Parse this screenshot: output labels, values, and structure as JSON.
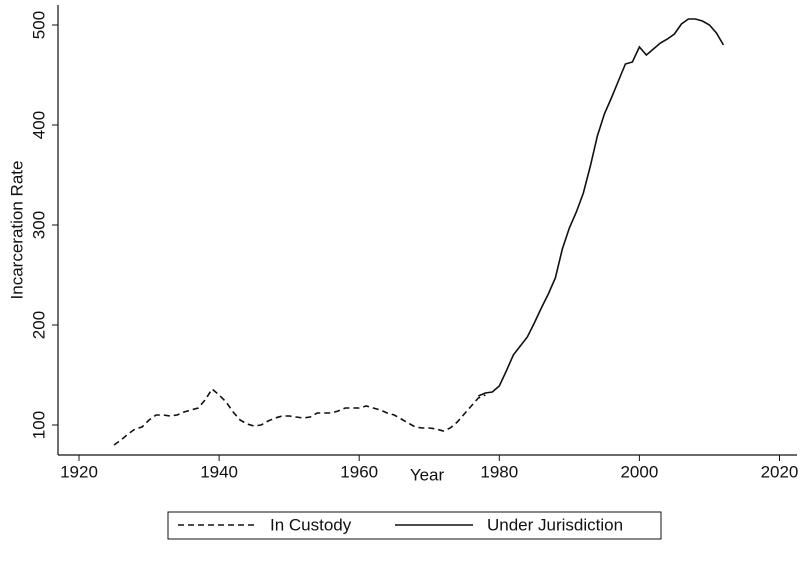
{
  "chart_data": {
    "type": "line",
    "x_label": "Year",
    "y_label": "Incarceration Rate",
    "xlim": [
      1917,
      2022.5
    ],
    "ylim": [
      70,
      520
    ],
    "xticks": [
      1920,
      1940,
      1960,
      1980,
      2000,
      2020
    ],
    "yticks": [
      100,
      200,
      300,
      400,
      500
    ],
    "grid": false,
    "legend": "bottom",
    "series": [
      {
        "name": "In Custody",
        "color": "#111111",
        "dash": true,
        "x": [
          1925,
          1926,
          1927,
          1928,
          1929,
          1930,
          1931,
          1932,
          1933,
          1934,
          1935,
          1936,
          1937,
          1938,
          1939,
          1940,
          1941,
          1942,
          1943,
          1944,
          1945,
          1946,
          1947,
          1948,
          1949,
          1950,
          1951,
          1952,
          1953,
          1954,
          1955,
          1956,
          1957,
          1958,
          1959,
          1960,
          1961,
          1962,
          1963,
          1964,
          1965,
          1966,
          1967,
          1968,
          1969,
          1970,
          1971,
          1972,
          1973,
          1974,
          1975,
          1976,
          1977,
          1978
        ],
        "values": [
          80,
          85,
          91,
          96,
          98,
          105,
          110,
          110,
          109,
          110,
          113,
          115,
          117,
          125,
          136,
          130,
          123,
          113,
          105,
          101,
          99,
          100,
          104,
          107,
          109,
          109,
          108,
          107,
          108,
          112,
          112,
          112,
          114,
          117,
          117,
          117,
          119,
          117,
          115,
          112,
          110,
          106,
          102,
          98,
          97,
          97,
          96,
          94,
          97,
          103,
          111,
          119,
          127,
          130
        ]
      },
      {
        "name": "Under Jurisdiction",
        "color": "#111111",
        "dash": false,
        "x": [
          1977,
          1978,
          1979,
          1980,
          1981,
          1982,
          1983,
          1984,
          1985,
          1986,
          1987,
          1988,
          1989,
          1990,
          1991,
          1992,
          1993,
          1994,
          1995,
          1996,
          1997,
          1998,
          1999,
          2000,
          2001,
          2002,
          2003,
          2004,
          2005,
          2006,
          2007,
          2008,
          2009,
          2010,
          2011,
          2012
        ],
        "values": [
          129,
          132,
          133,
          139,
          154,
          170,
          179,
          188,
          202,
          217,
          231,
          247,
          276,
          297,
          313,
          332,
          359,
          389,
          411,
          427,
          444,
          461,
          463,
          478,
          470,
          476,
          482,
          486,
          491,
          501,
          506,
          506,
          504,
          500,
          492,
          480
        ]
      }
    ]
  }
}
